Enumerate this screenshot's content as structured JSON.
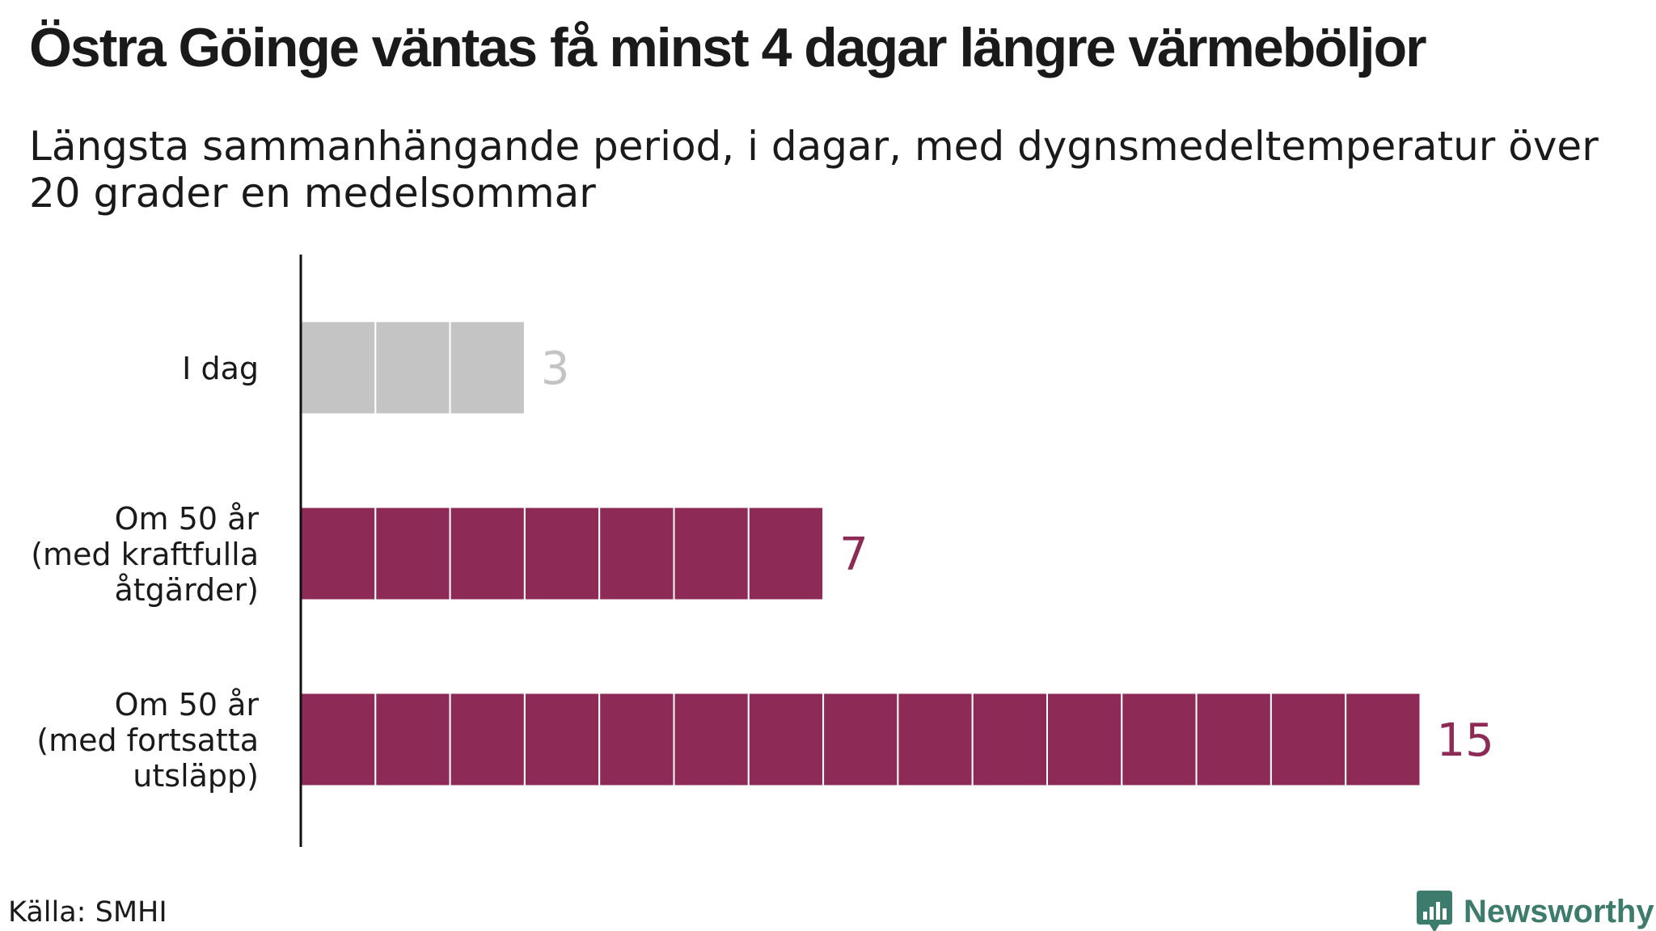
{
  "title": "Östra Göinge väntas få minst 4 dagar längre värmeböljor",
  "subtitle": "Längsta sammanhängande period, i dagar, med dygnsmedeltemperatur över 20 grader en medelsommar",
  "source": "Källa: SMHI",
  "logo": {
    "text": "Newsworthy",
    "icon": "bar-chart-logo-icon",
    "color": "#3d7b6c"
  },
  "chart_data": {
    "type": "bar",
    "orientation": "horizontal",
    "unit_style": "one block per day",
    "categories": [
      [
        "I dag"
      ],
      [
        "Om 50 år",
        "(med kraftfulla",
        "åtgärder)"
      ],
      [
        "Om 50 år",
        "(med fortsatta",
        "utsläpp)"
      ]
    ],
    "values": [
      3,
      7,
      15
    ],
    "value_labels": [
      "3",
      "7",
      "15"
    ],
    "colors": [
      "#c4c4c4",
      "#8e2a56",
      "#8e2a56"
    ],
    "label_colors": [
      "#c4c4c4",
      "#8e2a56",
      "#8e2a56"
    ],
    "xlim": [
      0,
      15
    ],
    "grid": false,
    "legend": "none"
  }
}
